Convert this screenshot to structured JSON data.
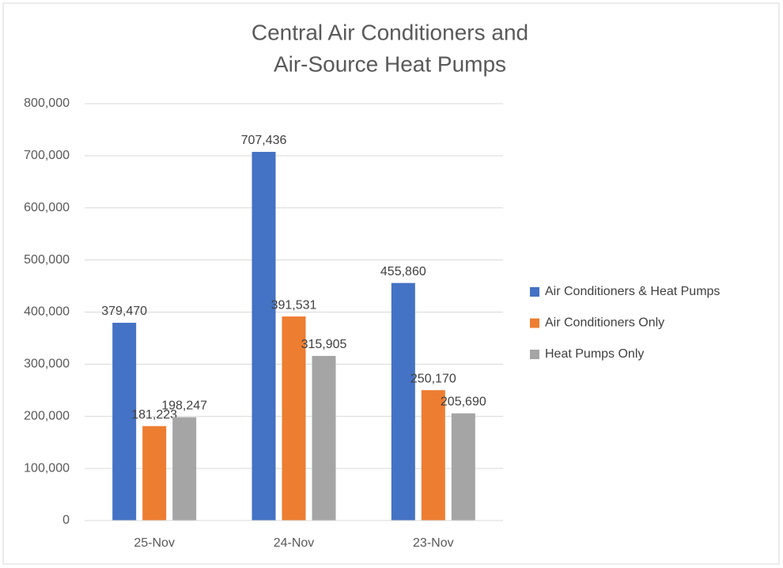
{
  "chart_data": {
    "type": "bar",
    "title": [
      "Central Air Conditioners and",
      "Air-Source Heat Pumps"
    ],
    "categories": [
      "25-Nov",
      "24-Nov",
      "23-Nov"
    ],
    "series": [
      {
        "name": "Air Conditioners & Heat Pumps",
        "color": "#4472c4",
        "values": [
          379470,
          707436,
          455860
        ],
        "value_labels": [
          "379,470",
          "707,436",
          "455,860"
        ]
      },
      {
        "name": "Air Conditioners Only",
        "color": "#ed7d31",
        "values": [
          181223,
          391531,
          250170
        ],
        "value_labels": [
          "181,223",
          "391,531",
          "250,170"
        ]
      },
      {
        "name": "Heat Pumps Only",
        "color": "#a5a5a5",
        "values": [
          198247,
          315905,
          205690
        ],
        "value_labels": [
          "198,247",
          "315,905",
          "205,690"
        ]
      }
    ],
    "ylim": [
      0,
      800000
    ],
    "yticks": [
      0,
      {
        "value": 100000,
        "label": "100,000"
      },
      {
        "value": 200000,
        "label": "200,000"
      },
      {
        "value": 300000,
        "label": "300,000"
      },
      {
        "value": 400000,
        "label": "400,000"
      },
      {
        "value": 500000,
        "label": "500,000"
      },
      {
        "value": 600000,
        "label": "600,000"
      },
      {
        "value": 700000,
        "label": "700,000"
      },
      {
        "value": 800000,
        "label": "800,000"
      }
    ],
    "grid": true,
    "legend": "right"
  }
}
